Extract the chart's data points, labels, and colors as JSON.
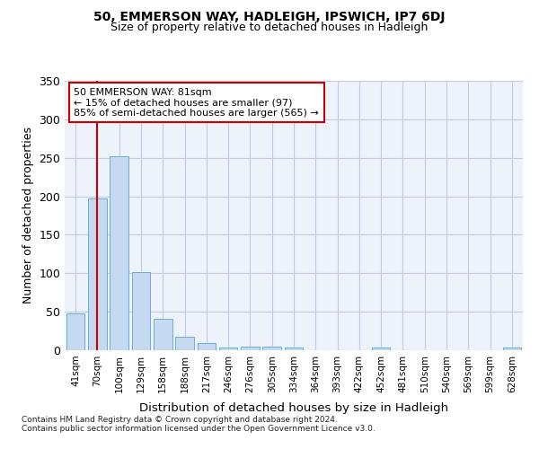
{
  "title1": "50, EMMERSON WAY, HADLEIGH, IPSWICH, IP7 6DJ",
  "title2": "Size of property relative to detached houses in Hadleigh",
  "xlabel": "Distribution of detached houses by size in Hadleigh",
  "ylabel": "Number of detached properties",
  "categories": [
    "41sqm",
    "70sqm",
    "100sqm",
    "129sqm",
    "158sqm",
    "188sqm",
    "217sqm",
    "246sqm",
    "276sqm",
    "305sqm",
    "334sqm",
    "364sqm",
    "393sqm",
    "422sqm",
    "452sqm",
    "481sqm",
    "510sqm",
    "540sqm",
    "569sqm",
    "599sqm",
    "628sqm"
  ],
  "values": [
    48,
    197,
    252,
    101,
    41,
    18,
    9,
    4,
    5,
    5,
    3,
    0,
    0,
    0,
    3,
    0,
    0,
    0,
    0,
    0,
    3
  ],
  "bar_color": "#c5d9f0",
  "bar_edge_color": "#6aaed6",
  "annotation_line1": "50 EMMERSON WAY: 81sqm",
  "annotation_line2": "← 15% of detached houses are smaller (97)",
  "annotation_line3": "85% of semi-detached houses are larger (565) →",
  "vline_x": 1.0,
  "vline_color": "#cc0000",
  "annot_box_facecolor": "#ffffff",
  "annot_box_edgecolor": "#cc0000",
  "footer1": "Contains HM Land Registry data © Crown copyright and database right 2024.",
  "footer2": "Contains public sector information licensed under the Open Government Licence v3.0.",
  "ylim": [
    0,
    350
  ],
  "yticks": [
    0,
    50,
    100,
    150,
    200,
    250,
    300,
    350
  ],
  "background_color": "#eef2fb"
}
